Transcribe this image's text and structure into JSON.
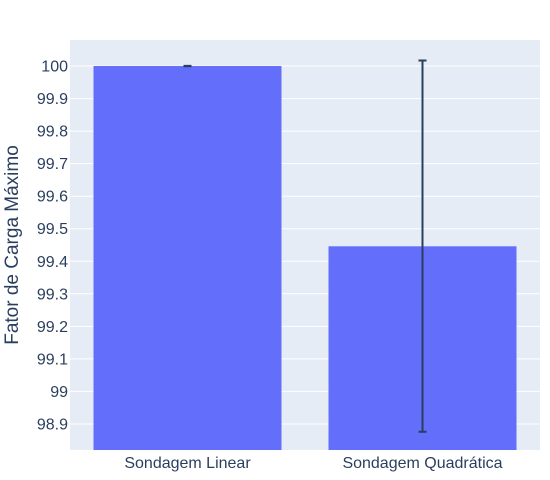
{
  "chart_data": {
    "type": "bar",
    "categories": [
      "Sondagem Linear",
      "Sondagem Quadrática"
    ],
    "values": [
      100.0,
      99.446
    ],
    "error_low": [
      99.9995,
      98.876
    ],
    "error_high": [
      100.0005,
      100.017
    ],
    "title": "",
    "xlabel": "",
    "ylabel": "Fator de Carga Máximo",
    "ylim": [
      98.82,
      100.08
    ],
    "yticks": [
      98.9,
      99,
      99.1,
      99.2,
      99.3,
      99.4,
      99.5,
      99.6,
      99.7,
      99.8,
      99.9,
      100
    ],
    "ytick_labels": [
      "98.9",
      "99",
      "99.1",
      "99.2",
      "99.3",
      "99.4",
      "99.5",
      "99.6",
      "99.7",
      "99.8",
      "99.9",
      "100"
    ],
    "grid": true,
    "legend": "none",
    "colors": {
      "bar": "#636efa",
      "plot_bg": "#e5ecf6",
      "grid": "#ffffff",
      "error_bar": "#2a3f5f",
      "text": "#2a3f5f"
    }
  }
}
